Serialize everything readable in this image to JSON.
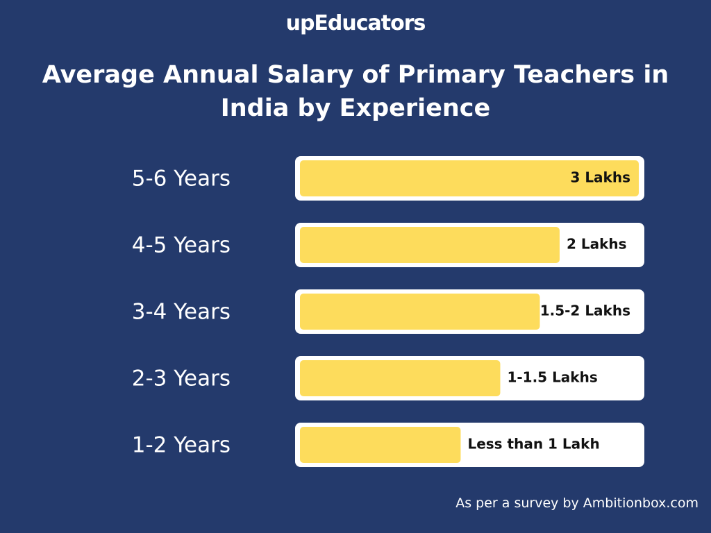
{
  "brand": "upEducators",
  "chart_data": {
    "type": "bar",
    "orientation": "horizontal",
    "title": "Average Annual Salary of Primary Teachers in India by Experience",
    "categories": [
      "5-6 Years",
      "4-5 Years",
      "3-4 Years",
      "2-3 Years",
      "1-2 Years"
    ],
    "values": [
      3,
      2,
      1.75,
      1.25,
      0.75
    ],
    "value_labels": [
      "3 Lakhs",
      "2 Lakhs",
      "1.5-2 Lakhs",
      "1-1.5 Lakhs",
      "Less than 1 Lakh"
    ],
    "color": "#fddc5c",
    "xlim": [
      -1.28,
      3
    ]
  },
  "footer": "As per a survey by Ambitionbox.com"
}
